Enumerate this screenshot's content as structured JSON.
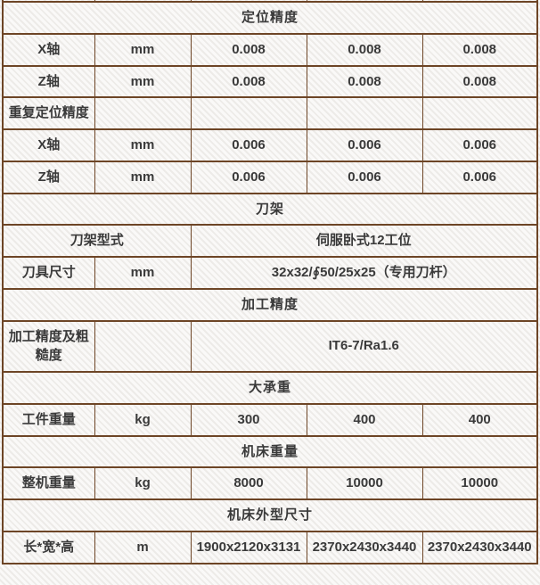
{
  "colors": {
    "border": "#6d4526",
    "text": "#3a3a3a"
  },
  "table": {
    "rows": [
      {
        "type": "spacer"
      },
      {
        "type": "section",
        "label": "定位精度"
      },
      {
        "type": "data",
        "param": "X轴",
        "unit": "mm",
        "values": [
          "0.008",
          "0.008",
          "0.008"
        ]
      },
      {
        "type": "data",
        "param": "Z轴",
        "unit": "mm",
        "values": [
          "0.008",
          "0.008",
          "0.008"
        ]
      },
      {
        "type": "subsection",
        "label": "重复定位精度"
      },
      {
        "type": "data",
        "param": "X轴",
        "unit": "mm",
        "values": [
          "0.006",
          "0.006",
          "0.006"
        ]
      },
      {
        "type": "data",
        "param": "Z轴",
        "unit": "mm",
        "values": [
          "0.006",
          "0.006",
          "0.006"
        ]
      },
      {
        "type": "section",
        "label": "刀架"
      },
      {
        "type": "merged2",
        "param": "刀架型式",
        "value": "伺服卧式12工位"
      },
      {
        "type": "merged",
        "param": "刀具尺寸",
        "unit": "mm",
        "value": "32x32/∮50/25x25（专用刀杆）"
      },
      {
        "type": "section",
        "label": "加工精度"
      },
      {
        "type": "merged",
        "param": "加工精度及粗糙度",
        "unit": "",
        "value": "IT6-7/Ra1.6"
      },
      {
        "type": "section",
        "label": "大承重"
      },
      {
        "type": "data",
        "param": "工件重量",
        "unit": "kg",
        "values": [
          "300",
          "400",
          "400"
        ]
      },
      {
        "type": "section",
        "label": "机床重量"
      },
      {
        "type": "data",
        "param": "整机重量",
        "unit": "kg",
        "values": [
          "8000",
          "10000",
          "10000"
        ]
      },
      {
        "type": "section",
        "label": "机床外型尺寸"
      },
      {
        "type": "data",
        "param": "长*宽*高",
        "unit": "m",
        "values": [
          "1900x2120x3131",
          "2370x2430x3440",
          "2370x2430x3440"
        ],
        "long": true
      }
    ]
  }
}
